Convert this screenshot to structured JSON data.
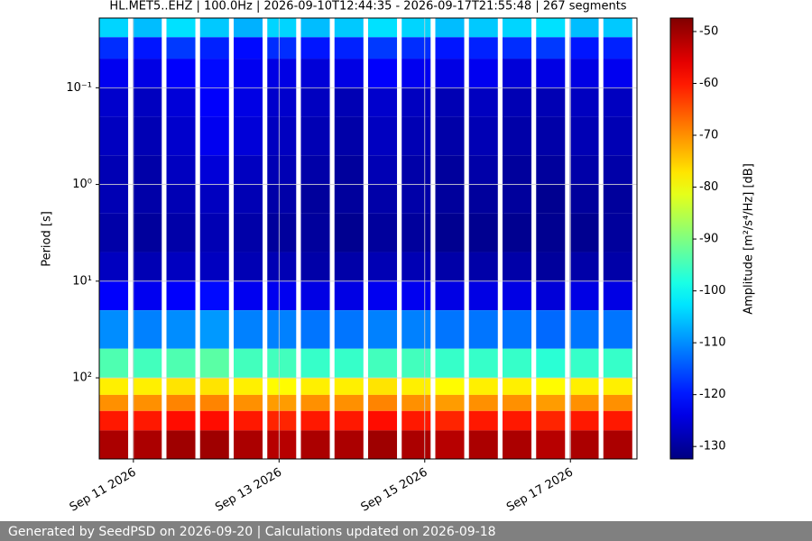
{
  "chart_data": {
    "type": "heatmap",
    "title": "HL.MET5..EHZ | 100.0Hz | 2026-09-10T12:44:35 - 2026-09-17T21:55:48 | 267 segments",
    "ylabel": "Period [s]",
    "colorbar_label": "Amplitude [m²/s⁴/Hz] [dB]",
    "colormap": "jet",
    "yscale": "log",
    "y_inverted": true,
    "grid": true,
    "xlim": [
      "2026-09-10T12:44:35",
      "2026-09-17T21:55:48"
    ],
    "xticks": [
      {
        "value": "2026-09-11T00:00:00",
        "label": "Sep 11 2026"
      },
      {
        "value": "2026-09-13T00:00:00",
        "label": "Sep 13 2026"
      },
      {
        "value": "2026-09-15T00:00:00",
        "label": "Sep 15 2026"
      },
      {
        "value": "2026-09-17T00:00:00",
        "label": "Sep 17 2026"
      }
    ],
    "ylim": [
      0.019,
      690
    ],
    "yticks": [
      {
        "value": 0.1,
        "label": "10⁻¹"
      },
      {
        "value": 1,
        "label": "10⁰"
      },
      {
        "value": 10,
        "label": "10¹"
      },
      {
        "value": 100,
        "label": "10²"
      }
    ],
    "clim": [
      -132.4,
      -47.4
    ],
    "cticks": [
      -50,
      -60,
      -70,
      -80,
      -90,
      -100,
      -110,
      -120,
      -130
    ],
    "y_edges": [
      0.019,
      0.03,
      0.05,
      0.1,
      0.2,
      0.5,
      1,
      2,
      5,
      10,
      20,
      50,
      100,
      150,
      220,
      350,
      690
    ],
    "z": [
      [
        -104,
        -106,
        -103,
        -105,
        -107,
        -104,
        -106,
        -105,
        -103,
        -104,
        -106,
        -105,
        -104,
        -103,
        -106,
        -105
      ],
      [
        -118,
        -120,
        -117,
        -119,
        -121,
        -118,
        -120,
        -119,
        -117,
        -118,
        -120,
        -119,
        -118,
        -117,
        -120,
        -119
      ],
      [
        -123,
        -124,
        -122,
        -121,
        -123,
        -124,
        -125,
        -124,
        -122,
        -123,
        -124,
        -123,
        -125,
        -124,
        -124,
        -123
      ],
      [
        -126,
        -127,
        -125,
        -122,
        -124,
        -126,
        -127,
        -128,
        -126,
        -127,
        -128,
        -127,
        -128,
        -128,
        -127,
        -127
      ],
      [
        -127,
        -128,
        -126,
        -123,
        -125,
        -127,
        -128,
        -129,
        -127,
        -128,
        -129,
        -128,
        -129,
        -129,
        -128,
        -128
      ],
      [
        -128,
        -129,
        -127,
        -125,
        -127,
        -128,
        -129,
        -130,
        -128,
        -129,
        -130,
        -129,
        -130,
        -130,
        -129,
        -129
      ],
      [
        -128,
        -129,
        -128,
        -127,
        -128,
        -129,
        -130,
        -130,
        -129,
        -129,
        -130,
        -130,
        -130,
        -131,
        -130,
        -130
      ],
      [
        -129,
        -130,
        -129,
        -128,
        -129,
        -130,
        -130,
        -131,
        -130,
        -130,
        -131,
        -131,
        -131,
        -131,
        -131,
        -130
      ],
      [
        -127,
        -128,
        -127,
        -127,
        -128,
        -128,
        -129,
        -129,
        -128,
        -128,
        -129,
        -129,
        -129,
        -130,
        -129,
        -129
      ],
      [
        -122,
        -123,
        -122,
        -121,
        -123,
        -123,
        -124,
        -124,
        -123,
        -123,
        -124,
        -124,
        -124,
        -125,
        -124,
        -124
      ],
      [
        -110,
        -111,
        -110,
        -109,
        -111,
        -111,
        -112,
        -112,
        -111,
        -111,
        -112,
        -112,
        -112,
        -113,
        -112,
        -112
      ],
      [
        -94,
        -95,
        -94,
        -93,
        -95,
        -95,
        -96,
        -96,
        -95,
        -95,
        -96,
        -96,
        -96,
        -97,
        -96,
        -96
      ],
      [
        -78,
        -78,
        -77,
        -77,
        -78,
        -79,
        -78,
        -78,
        -77,
        -78,
        -79,
        -78,
        -78,
        -79,
        -78,
        -78
      ],
      [
        -70,
        -70,
        -69,
        -69,
        -70,
        -71,
        -70,
        -70,
        -69,
        -70,
        -71,
        -70,
        -70,
        -71,
        -70,
        -70
      ],
      [
        -60,
        -60,
        -59,
        -59,
        -60,
        -61,
        -60,
        -60,
        -59,
        -60,
        -61,
        -60,
        -60,
        -61,
        -60,
        -60
      ],
      [
        -51,
        -51,
        -50,
        -50,
        -51,
        -52,
        -51,
        -51,
        -50,
        -51,
        -52,
        -51,
        -51,
        -52,
        -51,
        -51
      ]
    ]
  },
  "footer": {
    "text": "Generated by SeedPSD on 2026-09-20 | Calculations updated on 2026-09-18"
  }
}
